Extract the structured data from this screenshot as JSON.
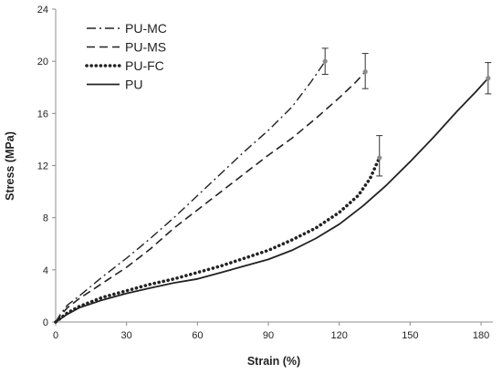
{
  "chart_data": {
    "type": "line",
    "title": "",
    "xlabel": "Strain (%)",
    "ylabel": "Stress (MPa)",
    "xlim": [
      0,
      185
    ],
    "ylim": [
      0,
      24
    ],
    "x_ticks": [
      0,
      30,
      60,
      90,
      120,
      150,
      180
    ],
    "y_ticks": [
      0,
      4,
      8,
      12,
      16,
      20,
      24
    ],
    "x_tick_labels": [
      "0",
      "30",
      "60",
      "90",
      "120",
      "150",
      "180"
    ],
    "y_tick_labels": [
      "0",
      "4",
      "8",
      "12",
      "16",
      "20",
      "24"
    ],
    "grid": false,
    "legend_position": "top-left",
    "series": [
      {
        "name": "PU-MC",
        "style": "dashdot",
        "color": "#222222",
        "points": [
          [
            0,
            0
          ],
          [
            2,
            0.6
          ],
          [
            5,
            1.3
          ],
          [
            10,
            2.0
          ],
          [
            20,
            3.5
          ],
          [
            30,
            4.9
          ],
          [
            40,
            6.4
          ],
          [
            50,
            8.0
          ],
          [
            60,
            9.7
          ],
          [
            70,
            11.4
          ],
          [
            80,
            13.1
          ],
          [
            90,
            14.7
          ],
          [
            100,
            16.5
          ],
          [
            108,
            18.4
          ],
          [
            114,
            20.0
          ]
        ],
        "error_bar": {
          "x": 114,
          "y": 20.0,
          "low": 19.0,
          "high": 21.0
        }
      },
      {
        "name": "PU-MS",
        "style": "dashed",
        "color": "#222222",
        "points": [
          [
            0,
            0
          ],
          [
            2,
            0.5
          ],
          [
            5,
            1.1
          ],
          [
            10,
            1.8
          ],
          [
            20,
            3.0
          ],
          [
            30,
            4.2
          ],
          [
            40,
            5.6
          ],
          [
            50,
            7.2
          ],
          [
            60,
            8.6
          ],
          [
            70,
            10.0
          ],
          [
            80,
            11.4
          ],
          [
            90,
            12.8
          ],
          [
            100,
            14.1
          ],
          [
            110,
            15.6
          ],
          [
            120,
            17.2
          ],
          [
            127,
            18.4
          ],
          [
            131,
            19.2
          ]
        ],
        "error_bar": {
          "x": 131,
          "y": 19.2,
          "low": 17.9,
          "high": 20.6
        }
      },
      {
        "name": "PU-FC",
        "style": "dotted",
        "color": "#222222",
        "points": [
          [
            0,
            0
          ],
          [
            5,
            0.7
          ],
          [
            10,
            1.2
          ],
          [
            20,
            1.9
          ],
          [
            30,
            2.4
          ],
          [
            40,
            2.9
          ],
          [
            50,
            3.3
          ],
          [
            60,
            3.8
          ],
          [
            70,
            4.3
          ],
          [
            80,
            4.9
          ],
          [
            90,
            5.5
          ],
          [
            100,
            6.3
          ],
          [
            110,
            7.2
          ],
          [
            120,
            8.4
          ],
          [
            128,
            9.7
          ],
          [
            133,
            11.0
          ],
          [
            137,
            12.6
          ]
        ],
        "error_bar": {
          "x": 137,
          "y": 12.6,
          "low": 11.2,
          "high": 14.3
        }
      },
      {
        "name": "PU",
        "style": "solid",
        "color": "#222222",
        "points": [
          [
            0,
            0
          ],
          [
            5,
            0.6
          ],
          [
            10,
            1.1
          ],
          [
            20,
            1.7
          ],
          [
            30,
            2.2
          ],
          [
            40,
            2.6
          ],
          [
            50,
            3.0
          ],
          [
            60,
            3.3
          ],
          [
            70,
            3.8
          ],
          [
            80,
            4.3
          ],
          [
            90,
            4.8
          ],
          [
            100,
            5.5
          ],
          [
            110,
            6.4
          ],
          [
            120,
            7.5
          ],
          [
            130,
            8.9
          ],
          [
            140,
            10.5
          ],
          [
            150,
            12.3
          ],
          [
            160,
            14.2
          ],
          [
            170,
            16.2
          ],
          [
            178,
            17.7
          ],
          [
            183,
            18.7
          ]
        ],
        "error_bar": {
          "x": 183,
          "y": 18.7,
          "low": 17.5,
          "high": 19.9
        }
      }
    ]
  }
}
